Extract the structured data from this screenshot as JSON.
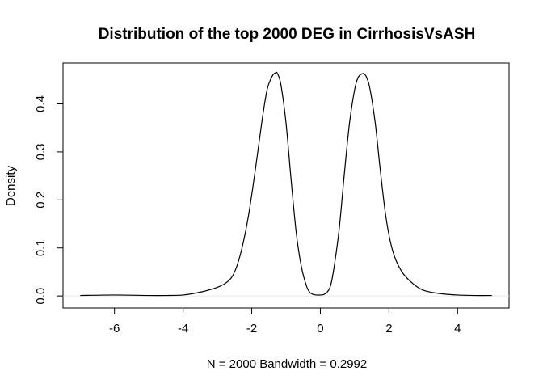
{
  "chart_data": {
    "type": "line",
    "title": "Distribution of the top 2000 DEG in CirrhosisVsASH",
    "xlabel": "N = 2000   Bandwidth = 0.2992",
    "ylabel": "Density",
    "xlim": [
      -7.5,
      5.5
    ],
    "ylim": [
      -0.025,
      0.485
    ],
    "x_ticks": [
      -6,
      -4,
      -2,
      0,
      2,
      4
    ],
    "x_tick_labels": [
      "-6",
      "-4",
      "-2",
      "0",
      "2",
      "4"
    ],
    "y_ticks": [
      0.0,
      0.1,
      0.2,
      0.3,
      0.4
    ],
    "y_tick_labels": [
      "0.0",
      "0.1",
      "0.2",
      "0.3",
      "0.4"
    ],
    "grid": false,
    "baseline": 0,
    "series": [
      {
        "color": "#000000",
        "x": [
          -7.0,
          -6.0,
          -5.0,
          -4.5,
          -4.0,
          -3.5,
          -3.0,
          -2.7,
          -2.5,
          -2.3,
          -2.1,
          -1.9,
          -1.7,
          -1.55,
          -1.4,
          -1.3,
          -1.25,
          -1.15,
          -1.0,
          -0.85,
          -0.7,
          -0.55,
          -0.4,
          -0.3,
          -0.2,
          -0.1,
          0.0,
          0.1,
          0.2,
          0.3,
          0.4,
          0.55,
          0.7,
          0.85,
          1.0,
          1.1,
          1.2,
          1.27,
          1.35,
          1.45,
          1.6,
          1.75,
          1.9,
          2.05,
          2.2,
          2.4,
          2.6,
          2.8,
          3.0,
          3.3,
          3.6,
          4.0,
          4.5,
          5.0
        ],
        "y": [
          0.001,
          0.002,
          0.001,
          0.001,
          0.002,
          0.008,
          0.018,
          0.03,
          0.05,
          0.095,
          0.165,
          0.26,
          0.365,
          0.43,
          0.458,
          0.465,
          0.463,
          0.44,
          0.36,
          0.24,
          0.13,
          0.06,
          0.02,
          0.007,
          0.003,
          0.002,
          0.002,
          0.003,
          0.008,
          0.022,
          0.06,
          0.14,
          0.255,
          0.36,
          0.43,
          0.455,
          0.462,
          0.463,
          0.455,
          0.43,
          0.36,
          0.26,
          0.17,
          0.11,
          0.075,
          0.048,
          0.032,
          0.02,
          0.012,
          0.007,
          0.004,
          0.002,
          0.001,
          0.001
        ]
      }
    ]
  }
}
